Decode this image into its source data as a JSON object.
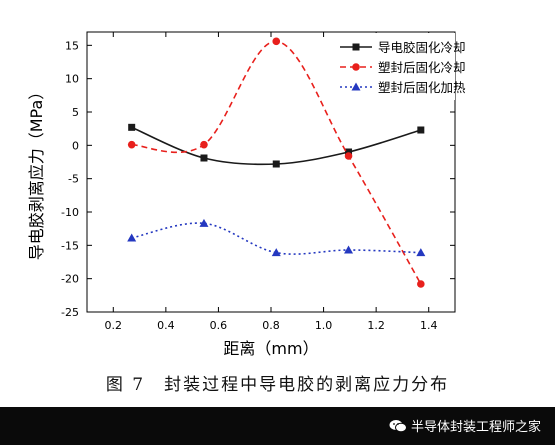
{
  "chart_data": {
    "type": "line",
    "title": "",
    "xlabel": "距离（mm）",
    "ylabel": "导电胶剥离应力（MPa）",
    "xlim": [
      0.1,
      1.5
    ],
    "ylim": [
      -25,
      17
    ],
    "xticks": [
      0.2,
      0.4,
      0.6,
      0.8,
      1.0,
      1.2,
      1.4
    ],
    "xtick_labels": [
      "0.2",
      "0.4",
      "0.6",
      "0.8",
      "1.0",
      "1.2",
      "1.4"
    ],
    "yticks": [
      -25,
      -20,
      -15,
      -10,
      -5,
      0,
      5,
      10,
      15
    ],
    "ytick_labels": [
      "-25",
      "-20",
      "-15",
      "-10",
      "-5",
      "0",
      "5",
      "10",
      "15"
    ],
    "grid": false,
    "legend_position": "top-right",
    "series": [
      {
        "name": "导电胶固化冷却",
        "color": "#1a1a1a",
        "marker": "square",
        "line": "solid",
        "x": [
          0.27,
          0.545,
          0.82,
          1.095,
          1.37
        ],
        "y": [
          2.7,
          -1.9,
          -2.8,
          -1.0,
          2.3
        ]
      },
      {
        "name": "塑封后固化冷却",
        "color": "#e8201c",
        "marker": "circle",
        "line": "dashed",
        "x": [
          0.27,
          0.545,
          0.82,
          1.095,
          1.37
        ],
        "y": [
          0.1,
          0.1,
          15.6,
          -1.6,
          -20.8
        ]
      },
      {
        "name": "塑封后固化加热",
        "color": "#2438c0",
        "marker": "triangle",
        "line": "dotted",
        "x": [
          0.27,
          0.545,
          0.82,
          1.095,
          1.37
        ],
        "y": [
          -13.9,
          -11.7,
          -16.1,
          -15.7,
          -16.1
        ]
      }
    ]
  },
  "caption": "图 7　封装过程中导电胶的剥离应力分布",
  "watermark": "半导体封装工程师之家"
}
